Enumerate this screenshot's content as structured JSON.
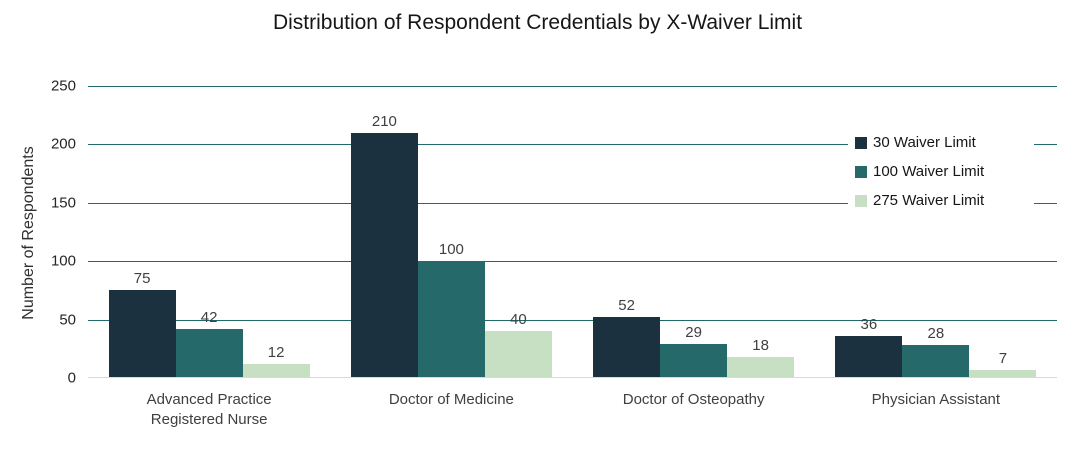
{
  "chart_data": {
    "type": "bar",
    "title": "Distribution of Respondent Credentials by X-Waiver Limit",
    "xlabel": "",
    "ylabel": "Number of Respondents",
    "categories": [
      "Advanced Practice Registered Nurse",
      "Doctor of Medicine",
      "Doctor of Osteopathy",
      "Physician Assistant"
    ],
    "series": [
      {
        "name": "30 Waiver Limit",
        "color": "#1c3140",
        "values": [
          75,
          210,
          52,
          36
        ]
      },
      {
        "name": "100 Waiver Limit",
        "color": "#26696b",
        "values": [
          42,
          100,
          29,
          28
        ]
      },
      {
        "name": "275 Waiver Limit",
        "color": "#c7e0c3",
        "values": [
          12,
          40,
          18,
          7
        ]
      }
    ],
    "ylim": [
      0,
      250
    ],
    "yticks": [
      0,
      50,
      100,
      150,
      200,
      250
    ],
    "grid": "on",
    "gridline_color": "#1e6a6c",
    "axis_line_color": "#d9d9d9",
    "data_labels": true,
    "legend_position": "right"
  }
}
